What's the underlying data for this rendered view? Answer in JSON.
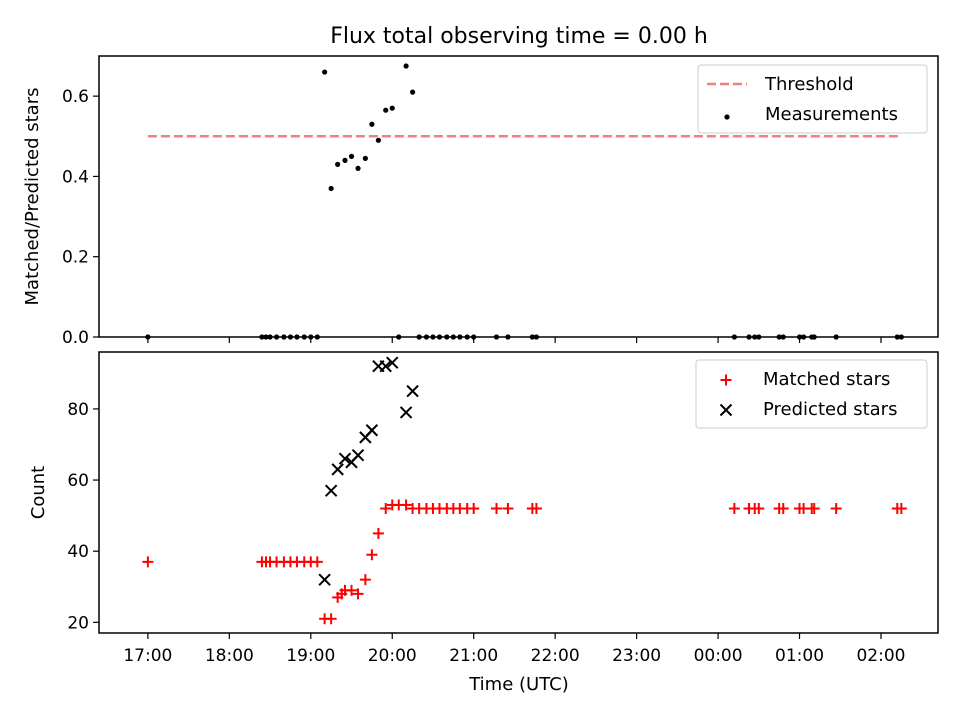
{
  "figure": {
    "title": "Flux total observing time = 0.00 h"
  },
  "colors": {
    "threshold_line": "#f08080",
    "measurements": "#000000",
    "matched_stars": "#ff0000",
    "predicted_stars": "#000000"
  },
  "chart_data": [
    {
      "type": "scatter",
      "title": "Flux total observing time = 0.00 h",
      "xlabel": "",
      "ylabel": "Matched/Predicted stars",
      "xlim": [
        16.4,
        26.7
      ],
      "ylim": [
        0,
        0.7
      ],
      "x_tick_values": [
        17,
        18,
        19,
        20,
        21,
        22,
        23,
        24,
        25,
        26
      ],
      "y_ticks": [
        0,
        0.2,
        0.4,
        0.6
      ],
      "y_tick_labels": [
        "0.0",
        "0.2",
        "0.4",
        "0.6"
      ],
      "grid": false,
      "legend_position": "upper right",
      "series": [
        {
          "name": "Threshold",
          "type": "line",
          "style": "dashed",
          "color": "#f08080",
          "x": [
            17.0,
            26.22
          ],
          "y": [
            0.5,
            0.5
          ]
        },
        {
          "name": "Measurements",
          "type": "scatter",
          "marker": "dot",
          "color": "#000000",
          "x": [
            17.0,
            18.4,
            18.45,
            18.5,
            18.58,
            18.67,
            18.75,
            18.83,
            18.92,
            19.0,
            19.08,
            19.17,
            19.25,
            19.33,
            19.42,
            19.5,
            19.58,
            19.67,
            19.75,
            19.83,
            19.92,
            20.0,
            20.08,
            20.17,
            20.25,
            20.33,
            20.42,
            20.5,
            20.58,
            20.67,
            20.75,
            20.83,
            20.92,
            21.0,
            21.28,
            21.42,
            21.72,
            21.77,
            24.2,
            24.38,
            24.45,
            24.5,
            24.75,
            24.8,
            25.0,
            25.05,
            25.15,
            25.18,
            25.45,
            26.2,
            26.25
          ],
          "y": [
            0,
            0,
            0,
            0,
            0,
            0,
            0,
            0,
            0,
            0,
            0,
            0.66,
            0.37,
            0.43,
            0.44,
            0.45,
            0.42,
            0.445,
            0.53,
            0.49,
            0.565,
            0.57,
            0,
            0.675,
            0.61,
            0,
            0,
            0,
            0,
            0,
            0,
            0,
            0,
            0,
            0,
            0,
            0,
            0,
            0,
            0,
            0,
            0,
            0,
            0,
            0,
            0,
            0,
            0,
            0,
            0,
            0
          ]
        }
      ]
    },
    {
      "type": "scatter",
      "title": "",
      "xlabel": "Time (UTC)",
      "ylabel": "Count",
      "xlim": [
        16.4,
        26.7
      ],
      "ylim": [
        17,
        96
      ],
      "x_tick_values": [
        17,
        18,
        19,
        20,
        21,
        22,
        23,
        24,
        25,
        26
      ],
      "x_tick_labels": [
        "17:00",
        "18:00",
        "19:00",
        "20:00",
        "21:00",
        "22:00",
        "23:00",
        "00:00",
        "01:00",
        "02:00"
      ],
      "y_ticks": [
        20,
        40,
        60,
        80
      ],
      "y_tick_labels": [
        "20",
        "40",
        "60",
        "80"
      ],
      "grid": false,
      "legend_position": "upper right",
      "series": [
        {
          "name": "Matched stars",
          "type": "scatter",
          "marker": "plus",
          "color": "#ff0000",
          "x": [
            17.0,
            18.4,
            18.45,
            18.5,
            18.58,
            18.67,
            18.75,
            18.83,
            18.92,
            19.0,
            19.08,
            19.17,
            19.25,
            19.33,
            19.38,
            19.42,
            19.5,
            19.58,
            19.67,
            19.75,
            19.83,
            19.92,
            20.0,
            20.08,
            20.17,
            20.25,
            20.33,
            20.42,
            20.5,
            20.58,
            20.67,
            20.75,
            20.83,
            20.92,
            21.0,
            21.28,
            21.42,
            21.72,
            21.77,
            24.2,
            24.38,
            24.45,
            24.5,
            24.75,
            24.8,
            25.0,
            25.05,
            25.15,
            25.18,
            25.45,
            26.2,
            26.25
          ],
          "y": [
            37,
            37,
            37,
            37,
            37,
            37,
            37,
            37,
            37,
            37,
            37,
            21,
            21,
            27,
            28,
            29,
            29,
            28,
            32,
            39,
            45,
            52,
            53,
            53,
            53,
            52,
            52,
            52,
            52,
            52,
            52,
            52,
            52,
            52,
            52,
            52,
            52,
            52,
            52,
            52,
            52,
            52,
            52,
            52,
            52,
            52,
            52,
            52,
            52,
            52,
            52,
            52
          ]
        },
        {
          "name": "Predicted stars",
          "type": "scatter",
          "marker": "x",
          "color": "#000000",
          "x": [
            19.17,
            19.25,
            19.33,
            19.42,
            19.5,
            19.58,
            19.67,
            19.75,
            19.83,
            19.92,
            20.0,
            20.17,
            20.25
          ],
          "y": [
            32,
            57,
            63,
            66,
            65,
            67,
            72,
            74,
            92,
            92,
            93,
            79,
            85
          ]
        }
      ]
    }
  ]
}
